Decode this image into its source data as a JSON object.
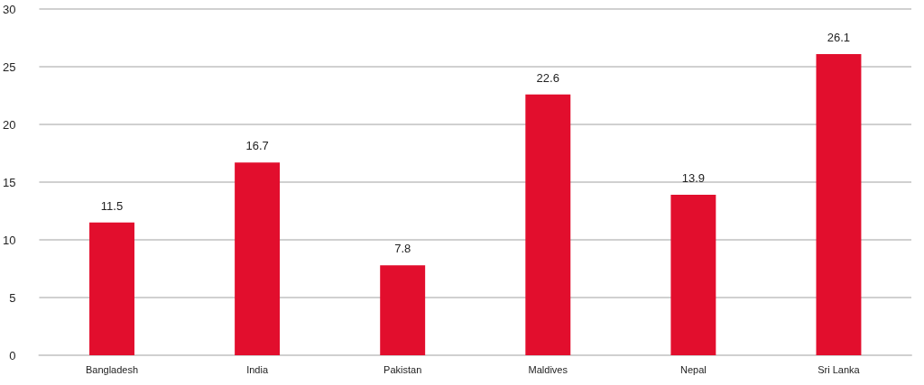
{
  "chart_data": {
    "type": "bar",
    "categories": [
      "Bangladesh",
      "India",
      "Pakistan",
      "Maldives",
      "Nepal",
      "Sri Lanka"
    ],
    "values": [
      11.5,
      16.7,
      7.8,
      22.6,
      13.9,
      26.1
    ],
    "color": "#e20e2d",
    "ylim": [
      0,
      30
    ],
    "yticks": [
      0,
      5,
      10,
      15,
      20,
      25,
      30
    ],
    "grid": "y",
    "data_labels": true
  }
}
